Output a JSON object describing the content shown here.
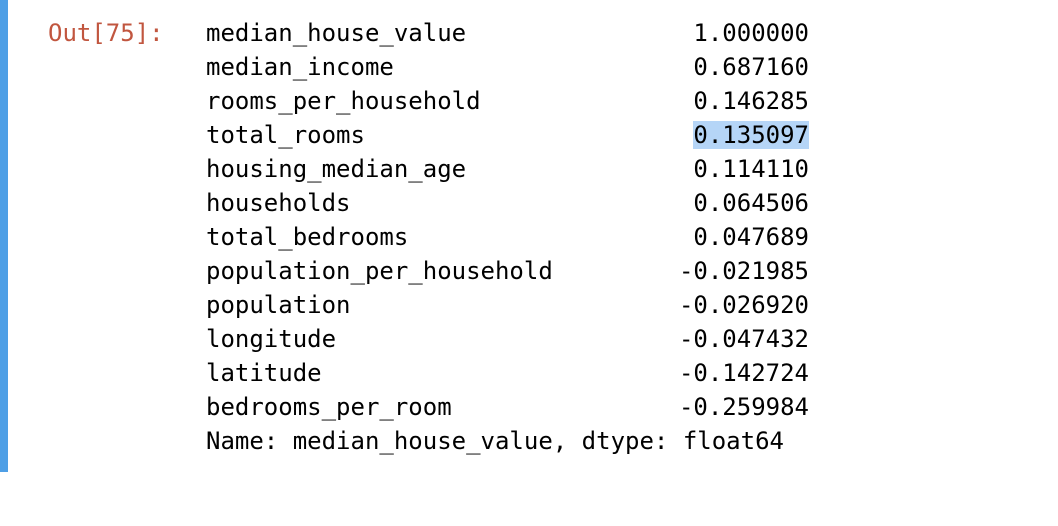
{
  "prompt_label": "Out[75]:",
  "rows": [
    {
      "name": "median_house_value",
      "value": "1.000000"
    },
    {
      "name": "median_income",
      "value": "0.687160"
    },
    {
      "name": "rooms_per_household",
      "value": "0.146285"
    },
    {
      "name": "total_rooms",
      "value": "0.135097"
    },
    {
      "name": "housing_median_age",
      "value": "0.114110"
    },
    {
      "name": "households",
      "value": "0.064506"
    },
    {
      "name": "total_bedrooms",
      "value": "0.047689"
    },
    {
      "name": "population_per_household",
      "value": "-0.021985"
    },
    {
      "name": "population",
      "value": "-0.026920"
    },
    {
      "name": "longitude",
      "value": "-0.047432"
    },
    {
      "name": "latitude",
      "value": "-0.142724"
    },
    {
      "name": "bedrooms_per_room",
      "value": "-0.259984"
    }
  ],
  "footer": "Name: median_house_value, dtype: float64",
  "selection": {
    "row_index": 3,
    "color": "#b5d5f7"
  },
  "colors": {
    "prompt": "#c1563f",
    "cell_bar": "#4e9fe6"
  }
}
